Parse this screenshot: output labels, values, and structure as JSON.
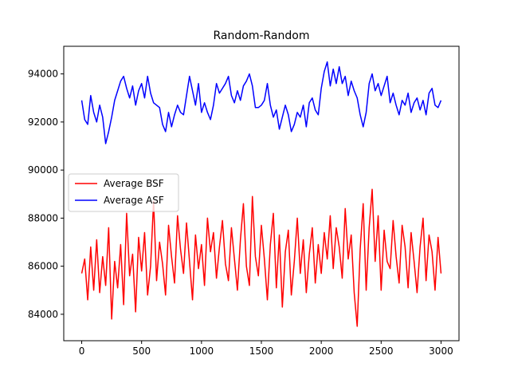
{
  "chart_data": {
    "type": "line",
    "title": "Random-Random",
    "xlabel": "",
    "ylabel": "",
    "xlim": [
      -150,
      3150
    ],
    "ylim": [
      82900,
      95150
    ],
    "xticks": [
      0,
      500,
      1000,
      1500,
      2000,
      2500,
      3000
    ],
    "yticks": [
      84000,
      86000,
      88000,
      90000,
      92000,
      94000
    ],
    "grid": false,
    "legend": {
      "placement": "center-left"
    },
    "series": [
      {
        "name": "Average BSF",
        "color": "#ff0000",
        "x": [
          0,
          25,
          50,
          75,
          100,
          125,
          150,
          175,
          200,
          225,
          250,
          275,
          300,
          325,
          350,
          375,
          400,
          425,
          450,
          475,
          500,
          525,
          550,
          575,
          600,
          625,
          650,
          675,
          700,
          725,
          750,
          775,
          800,
          825,
          850,
          875,
          900,
          925,
          950,
          975,
          1000,
          1025,
          1050,
          1075,
          1100,
          1125,
          1150,
          1175,
          1200,
          1225,
          1250,
          1275,
          1300,
          1325,
          1350,
          1375,
          1400,
          1425,
          1450,
          1475,
          1500,
          1525,
          1550,
          1575,
          1600,
          1625,
          1650,
          1675,
          1700,
          1725,
          1750,
          1775,
          1800,
          1825,
          1850,
          1875,
          1900,
          1925,
          1950,
          1975,
          2000,
          2025,
          2050,
          2075,
          2100,
          2125,
          2150,
          2175,
          2200,
          2225,
          2250,
          2275,
          2300,
          2325,
          2350,
          2375,
          2400,
          2425,
          2450,
          2475,
          2500,
          2525,
          2550,
          2575,
          2600,
          2625,
          2650,
          2675,
          2700,
          2725,
          2750,
          2775,
          2800,
          2825,
          2850,
          2875,
          2900,
          2925,
          2950,
          2975,
          3000
        ],
        "values": [
          85700,
          86300,
          84600,
          86800,
          85000,
          87100,
          84900,
          86400,
          85200,
          87600,
          83800,
          86200,
          85100,
          86900,
          84400,
          88200,
          85600,
          86500,
          84100,
          87200,
          85800,
          87400,
          84800,
          86000,
          88700,
          85400,
          87000,
          86100,
          84800,
          87700,
          86400,
          85300,
          88100,
          86700,
          85700,
          87800,
          86200,
          84600,
          87300,
          85900,
          86900,
          85200,
          88000,
          86600,
          87400,
          85500,
          86800,
          87900,
          86100,
          85400,
          87600,
          86300,
          85000,
          87100,
          88600,
          86000,
          85200,
          88900,
          86400,
          85600,
          87700,
          86300,
          84600,
          86900,
          88200,
          85100,
          87300,
          84300,
          86600,
          87500,
          84800,
          86200,
          88000,
          85700,
          87100,
          84900,
          86500,
          87600,
          85300,
          86900,
          85700,
          87400,
          86300,
          88100,
          85900,
          87600,
          86800,
          85500,
          88400,
          86300,
          87300,
          84900,
          83500,
          86700,
          88600,
          85000,
          87600,
          89200,
          86200,
          88100,
          85000,
          87500,
          86200,
          85900,
          87900,
          86400,
          85300,
          87700,
          86800,
          85100,
          87400,
          86200,
          84900,
          86800,
          88000,
          85400,
          87300,
          86600,
          85000,
          87200,
          85700
        ]
      },
      {
        "name": "Average ASF",
        "color": "#0000ff",
        "x": [
          0,
          25,
          50,
          75,
          100,
          125,
          150,
          175,
          200,
          225,
          250,
          275,
          300,
          325,
          350,
          375,
          400,
          425,
          450,
          475,
          500,
          525,
          550,
          575,
          600,
          625,
          650,
          675,
          700,
          725,
          750,
          775,
          800,
          825,
          850,
          875,
          900,
          925,
          950,
          975,
          1000,
          1025,
          1050,
          1075,
          1100,
          1125,
          1150,
          1175,
          1200,
          1225,
          1250,
          1275,
          1300,
          1325,
          1350,
          1375,
          1400,
          1425,
          1450,
          1475,
          1500,
          1525,
          1550,
          1575,
          1600,
          1625,
          1650,
          1675,
          1700,
          1725,
          1750,
          1775,
          1800,
          1825,
          1850,
          1875,
          1900,
          1925,
          1950,
          1975,
          2000,
          2025,
          2050,
          2075,
          2100,
          2125,
          2150,
          2175,
          2200,
          2225,
          2250,
          2275,
          2300,
          2325,
          2350,
          2375,
          2400,
          2425,
          2450,
          2475,
          2500,
          2525,
          2550,
          2575,
          2600,
          2625,
          2650,
          2675,
          2700,
          2725,
          2750,
          2775,
          2800,
          2825,
          2850,
          2875,
          2900,
          2925,
          2950,
          2975,
          3000
        ],
        "values": [
          92900,
          92100,
          91900,
          93100,
          92400,
          92000,
          92700,
          92200,
          91100,
          91600,
          92200,
          92900,
          93300,
          93700,
          93900,
          93400,
          93000,
          93500,
          92700,
          93300,
          93600,
          93000,
          93900,
          93200,
          92800,
          92700,
          92600,
          91900,
          91600,
          92400,
          91800,
          92300,
          92700,
          92400,
          92300,
          93100,
          93900,
          93300,
          92700,
          93600,
          92400,
          92800,
          92400,
          92100,
          92700,
          93600,
          93200,
          93400,
          93600,
          93900,
          93100,
          92800,
          93300,
          92900,
          93500,
          93700,
          94000,
          93500,
          92600,
          92600,
          92700,
          92900,
          93600,
          92700,
          92200,
          92500,
          91700,
          92200,
          92700,
          92300,
          91600,
          91900,
          92400,
          92200,
          92700,
          91800,
          92800,
          93000,
          92500,
          92300,
          93400,
          94100,
          94500,
          93500,
          94200,
          93600,
          94300,
          93600,
          93900,
          93100,
          93700,
          93300,
          93000,
          92300,
          91800,
          92400,
          93600,
          94000,
          93300,
          93600,
          93100,
          93500,
          93900,
          92800,
          93200,
          92700,
          92300,
          92900,
          92700,
          93200,
          92400,
          92800,
          93000,
          92500,
          92900,
          92300,
          93200,
          93400,
          92700,
          92600,
          92900
        ]
      }
    ]
  }
}
